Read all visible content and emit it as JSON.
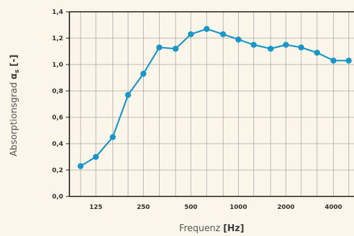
{
  "chart_data": {
    "type": "line",
    "title": "",
    "xlabel": "Frequenz",
    "xlabel_unit": "[Hz]",
    "ylabel": "Absorptionsgrad",
    "ylabel_symbol": "α",
    "ylabel_subscript": "s",
    "ylabel_unit": "[-]",
    "x_scale": "log (third-octave bands)",
    "x_tick_labels": [
      "125",
      "250",
      "500",
      "1000",
      "2000",
      "4000"
    ],
    "y_tick_labels": [
      "0,0",
      "0,2",
      "0,4",
      "0,6",
      "0,8",
      "1,0",
      "1,2",
      "1,4"
    ],
    "ylim": [
      0,
      1.4
    ],
    "grid": true,
    "series": [
      {
        "x": [
          100,
          125,
          160,
          200,
          250,
          315,
          400,
          500,
          630,
          800,
          1000,
          1250,
          1600,
          2000,
          2500,
          3150,
          4000,
          5000
        ],
        "values": [
          0.23,
          0.3,
          0.45,
          0.77,
          0.93,
          1.13,
          1.12,
          1.23,
          1.27,
          1.23,
          1.19,
          1.15,
          1.12,
          1.15,
          1.13,
          1.09,
          1.03,
          1.03
        ]
      }
    ],
    "colors": {
      "line": "#1a95c8",
      "marker": "#1a95c8",
      "grid": "#a9a9a9",
      "axis": "#1a1a1a",
      "background": "#fbf6e9"
    }
  }
}
